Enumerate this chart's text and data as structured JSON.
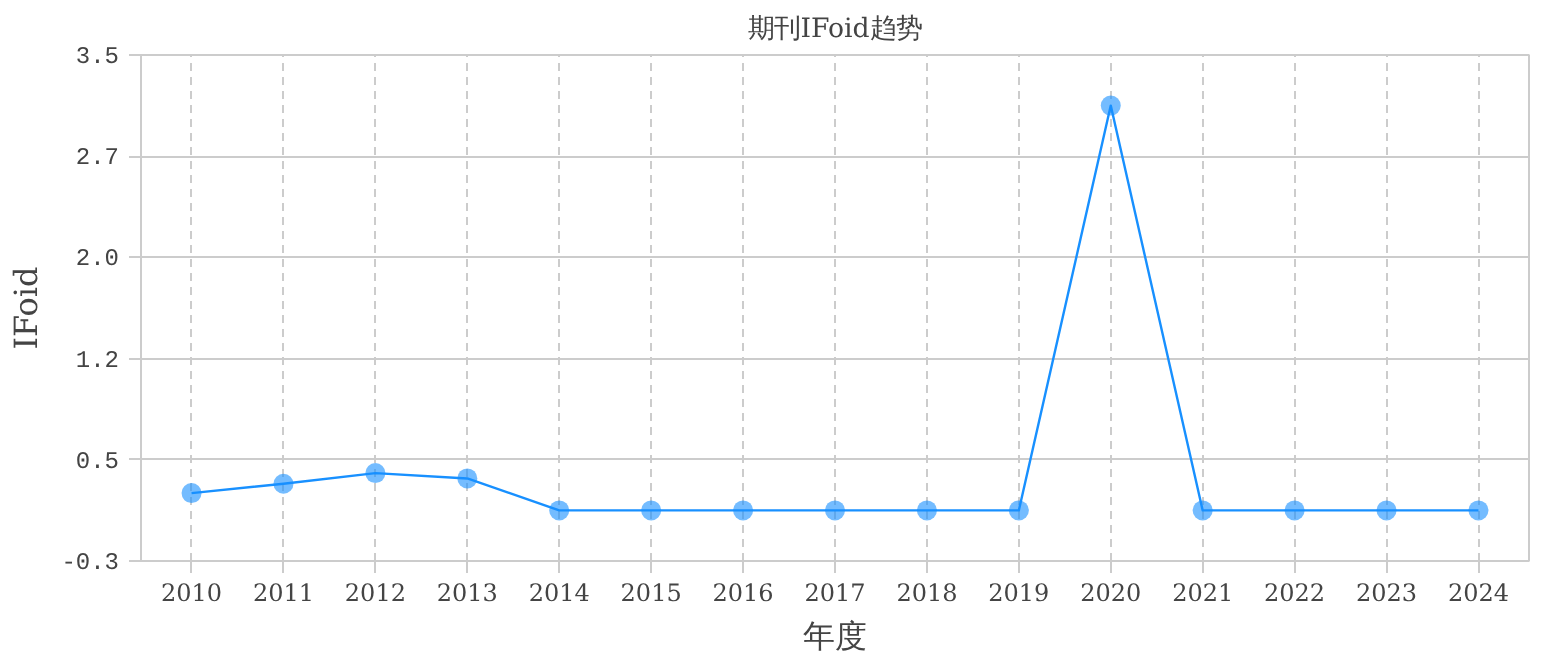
{
  "chart_data": {
    "type": "line",
    "title": "期刊IFoid趋势",
    "xlabel": "年度",
    "ylabel": "IFoid",
    "categories": [
      "2010",
      "2011",
      "2012",
      "2013",
      "2014",
      "2015",
      "2016",
      "2017",
      "2018",
      "2019",
      "2020",
      "2021",
      "2022",
      "2023",
      "2024"
    ],
    "series": [
      {
        "color": "#1890ff",
        "values": [
          0.21,
          0.28,
          0.36,
          0.32,
          0.08,
          0.08,
          0.08,
          0.08,
          0.08,
          0.08,
          3.12,
          0.08,
          0.08,
          0.08,
          0.08
        ]
      }
    ],
    "ylim": [
      -0.3,
      3.5
    ],
    "yticks": [
      -0.3,
      {
        "value": 0.46,
        "label": "0.5"
      },
      {
        "value": 1.22,
        "label": "1.2"
      },
      {
        "value": 1.98,
        "label": "2.0"
      },
      {
        "value": 2.74,
        "label": "2.7"
      },
      3.5
    ],
    "grid": true,
    "marker": "circle",
    "line_style": "solid"
  }
}
